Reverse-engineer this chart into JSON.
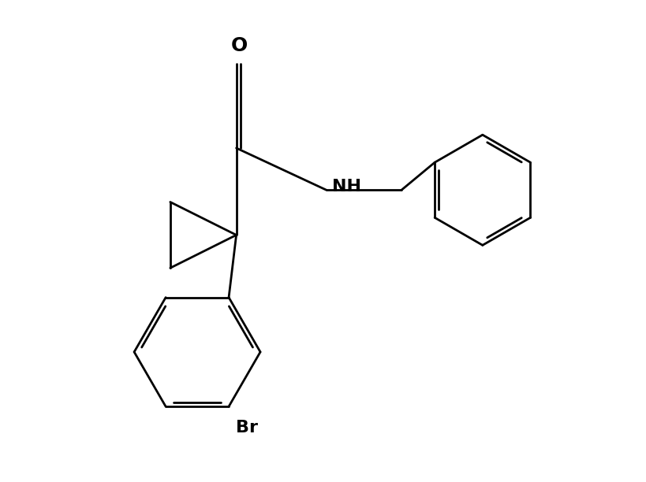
{
  "background": "#ffffff",
  "line_color": "#000000",
  "line_width": 2.0,
  "font_size": 15,
  "figsize": [
    8.2,
    6.12
  ],
  "dpi": 100,
  "xlim": [
    0.0,
    10.0
  ],
  "ylim": [
    0.0,
    8.0
  ]
}
